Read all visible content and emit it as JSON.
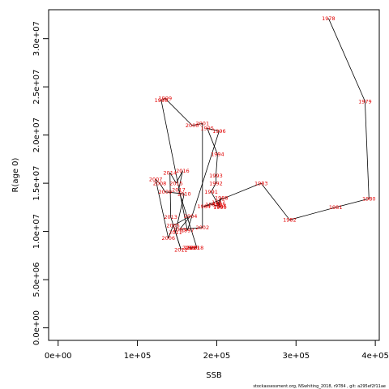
{
  "chart_data": {
    "type": "line",
    "title": "",
    "xlabel": "SSB",
    "ylabel": "R(age 0)",
    "xlim": [
      -12000,
      405000
    ],
    "ylim": [
      -1300000,
      33000000
    ],
    "x_ticks": [
      {
        "value": 0,
        "label": "0e+00"
      },
      {
        "value": 100000,
        "label": "1e+05"
      },
      {
        "value": 200000,
        "label": "2e+05"
      },
      {
        "value": 300000,
        "label": "3e+05"
      },
      {
        "value": 400000,
        "label": "4e+05"
      }
    ],
    "y_ticks": [
      {
        "value": 0,
        "label": "0.0e+00"
      },
      {
        "value": 5000000,
        "label": "5.0e+06"
      },
      {
        "value": 10000000,
        "label": "1.0e+07"
      },
      {
        "value": 15000000,
        "label": "1.5e+07"
      },
      {
        "value": 20000000,
        "label": "2.0e+07"
      },
      {
        "value": 25000000,
        "label": "2.5e+07"
      },
      {
        "value": 30000000,
        "label": "3.0e+07"
      }
    ],
    "label_color": "#e00000",
    "line_color": "#000000",
    "grid": false,
    "points": [
      {
        "year": "1978",
        "x": 341000,
        "y": 32100000
      },
      {
        "year": "1979",
        "x": 387000,
        "y": 23500000
      },
      {
        "year": "1980",
        "x": 392000,
        "y": 13400000
      },
      {
        "year": "1981",
        "x": 350000,
        "y": 12500000
      },
      {
        "year": "1982",
        "x": 292000,
        "y": 11200000
      },
      {
        "year": "1983",
        "x": 256000,
        "y": 15000000
      },
      {
        "year": "1984",
        "x": 184000,
        "y": 12600000
      },
      {
        "year": "1985",
        "x": 194000,
        "y": 12800000
      },
      {
        "year": "1986",
        "x": 204000,
        "y": 12600000
      },
      {
        "year": "1987",
        "x": 202000,
        "y": 13000000
      },
      {
        "year": "1988",
        "x": 206000,
        "y": 13500000
      },
      {
        "year": "1989",
        "x": 203000,
        "y": 12800000
      },
      {
        "year": "1990",
        "x": 204000,
        "y": 12500000
      },
      {
        "year": "1991",
        "x": 193000,
        "y": 14100000
      },
      {
        "year": "1992",
        "x": 199000,
        "y": 15000000
      },
      {
        "year": "1993",
        "x": 199000,
        "y": 15800000
      },
      {
        "year": "1994",
        "x": 201000,
        "y": 18000000
      },
      {
        "year": "1995",
        "x": 188000,
        "y": 20700000
      },
      {
        "year": "1996",
        "x": 203000,
        "y": 20400000
      },
      {
        "year": "1997",
        "x": 163000,
        "y": 10100000
      },
      {
        "year": "1998",
        "x": 130000,
        "y": 23600000
      },
      {
        "year": "1999",
        "x": 135000,
        "y": 23800000
      },
      {
        "year": "2000",
        "x": 169000,
        "y": 21000000
      },
      {
        "year": "2001",
        "x": 182000,
        "y": 21200000
      },
      {
        "year": "2002",
        "x": 182000,
        "y": 10400000
      },
      {
        "year": "2003",
        "x": 153000,
        "y": 10200000
      },
      {
        "year": "2004",
        "x": 167000,
        "y": 11600000
      },
      {
        "year": "2005",
        "x": 145000,
        "y": 10600000
      },
      {
        "year": "2006",
        "x": 139000,
        "y": 9300000
      },
      {
        "year": "2007",
        "x": 123000,
        "y": 15400000
      },
      {
        "year": "2008",
        "x": 128000,
        "y": 15000000
      },
      {
        "year": "2009",
        "x": 135000,
        "y": 14100000
      },
      {
        "year": "2010",
        "x": 159000,
        "y": 13900000
      },
      {
        "year": "2011",
        "x": 148000,
        "y": 9900000
      },
      {
        "year": "2012",
        "x": 155000,
        "y": 8100000
      },
      {
        "year": "2013",
        "x": 142000,
        "y": 11500000
      },
      {
        "year": "2014",
        "x": 141000,
        "y": 16100000
      },
      {
        "year": "2015",
        "x": 149000,
        "y": 15000000
      },
      {
        "year": "2016",
        "x": 157000,
        "y": 16300000
      },
      {
        "year": "2017",
        "x": 152000,
        "y": 14300000
      },
      {
        "year": "2018",
        "x": 175000,
        "y": 8300000
      },
      {
        "year": "2019",
        "x": 165000,
        "y": 8300000
      },
      {
        "year": "2020",
        "x": 167000,
        "y": 8300000
      },
      {
        "year": "2021",
        "x": 170000,
        "y": 8300000
      }
    ]
  },
  "footer": {
    "text": "stockassessment.org, NSwhiting_2018, r9784 , git: a295ef2f11ae"
  }
}
